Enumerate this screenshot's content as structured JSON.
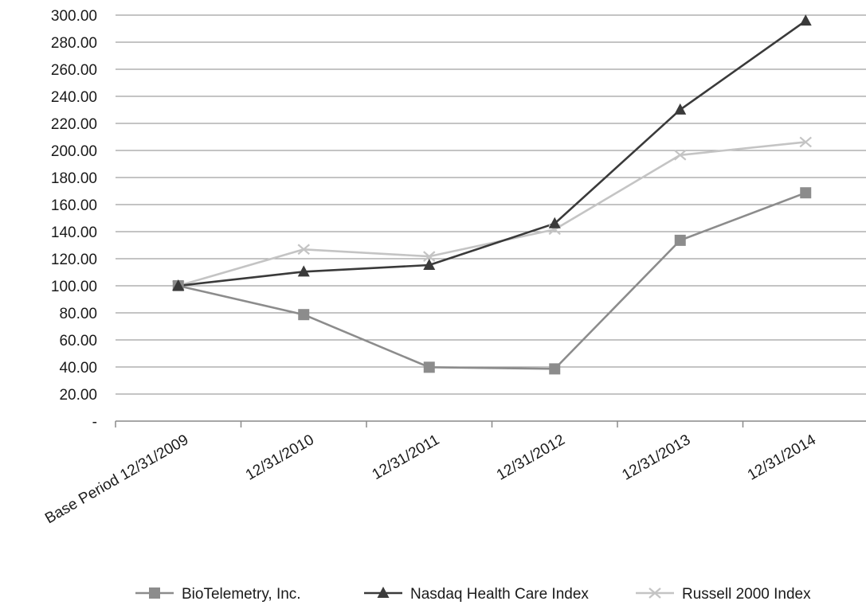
{
  "chart_data": {
    "type": "line",
    "title": "",
    "xlabel": "",
    "ylabel": "",
    "categories": [
      "Base Period 12/31/2009",
      "12/31/2010",
      "12/31/2011",
      "12/31/2012",
      "12/31/2013",
      "12/31/2014"
    ],
    "y_ticks": [
      "-",
      "20.00",
      "40.00",
      "60.00",
      "80.00",
      "100.00",
      "120.00",
      "140.00",
      "160.00",
      "180.00",
      "200.00",
      "220.00",
      "240.00",
      "260.00",
      "280.00",
      "300.00"
    ],
    "ylim": [
      0,
      300
    ],
    "y_step": 20,
    "grid": "horizontal",
    "legend_position": "bottom",
    "series": [
      {
        "name": "BioTelemetry, Inc.",
        "marker": "square",
        "color": "#8c8c8c",
        "values": [
          100.0,
          78.7,
          39.8,
          38.6,
          133.6,
          168.7
        ]
      },
      {
        "name": "Nasdaq Health Care Index",
        "marker": "triangle",
        "color": "#3a3a3a",
        "values": [
          100.0,
          110.4,
          115.3,
          146.0,
          230.1,
          295.8
        ]
      },
      {
        "name": "Russell 2000 Index",
        "marker": "x",
        "color": "#c4c4c4",
        "values": [
          100.0,
          126.9,
          121.7,
          141.6,
          196.6,
          206.2
        ]
      }
    ]
  }
}
